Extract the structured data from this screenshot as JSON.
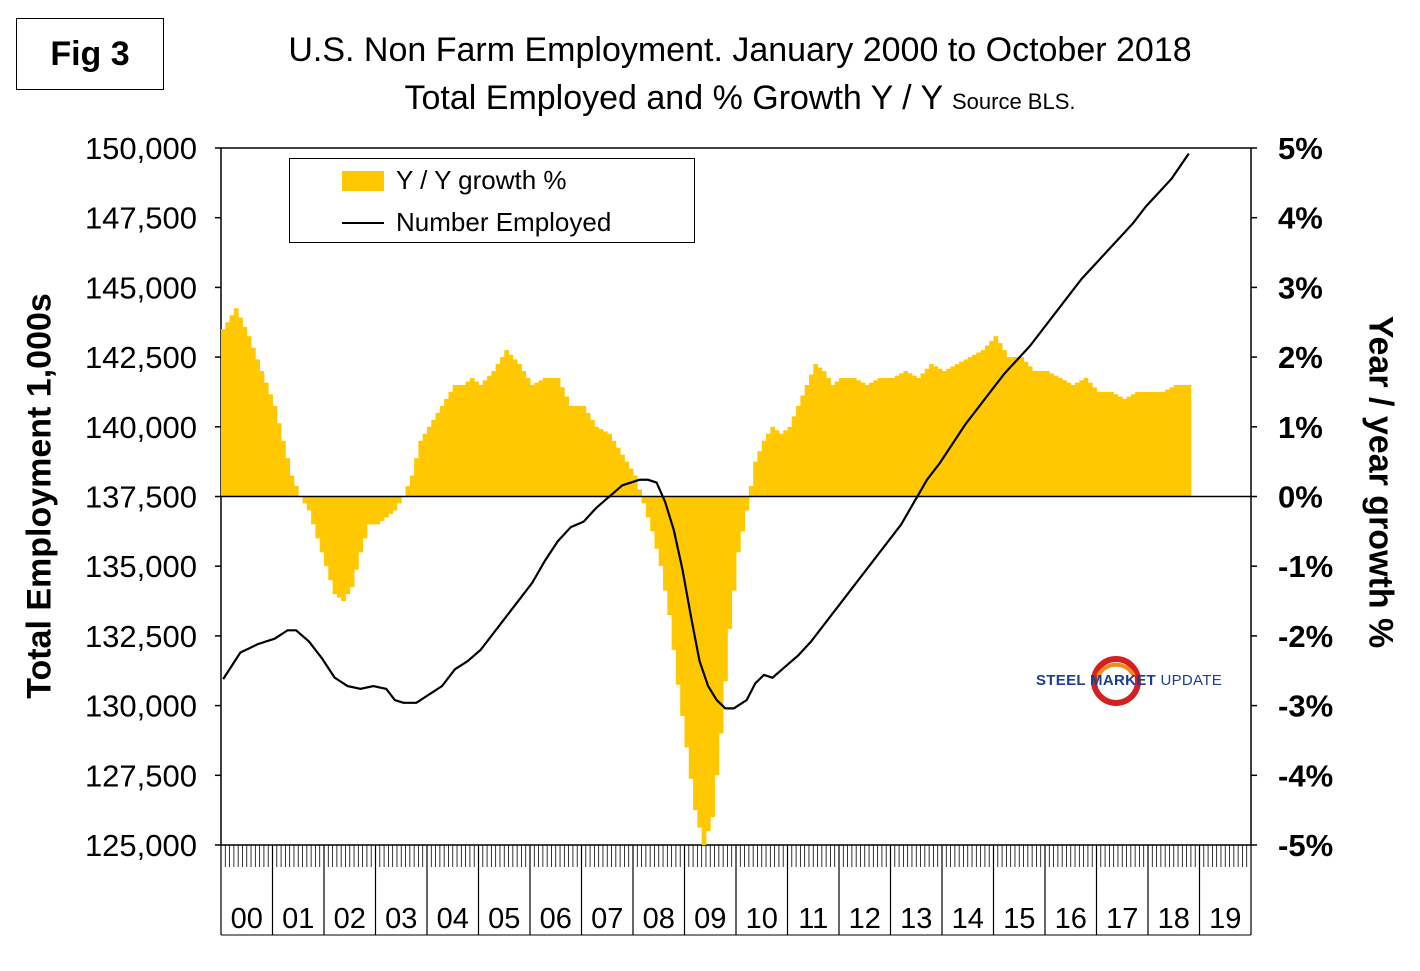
{
  "figure": {
    "label": "Fig 3",
    "title_line1": "U.S. Non Farm Employment. January 2000 to October 2018",
    "title_line2": "Total Employed and % Growth Y / Y",
    "title_source": "Source BLS."
  },
  "logo": {
    "brand": "STEEL MARKET",
    "suffix": "UPDATE"
  },
  "colors": {
    "bar": "#ffc800",
    "line": "#000000",
    "logo_red": "#d42020",
    "logo_orange": "#f08a1c",
    "logo_blue": "#1c3f8a"
  },
  "chart_data": {
    "type": "bar+line",
    "title": "U.S. Non Farm Employment. January 2000 to October 2018",
    "ylabel_left": "Total Employment 1,000s",
    "ylabel_right": "Year / year growth %",
    "y_left_range": [
      125000,
      150000
    ],
    "y_right_range": [
      -5,
      5
    ],
    "y_left_ticks": [
      "150,000",
      "147,500",
      "145,000",
      "142,500",
      "140,000",
      "137,500",
      "135,000",
      "132,500",
      "130,000",
      "127,500",
      "125,000"
    ],
    "y_right_ticks": [
      "5%",
      "4%",
      "3%",
      "2%",
      "1%",
      "0%",
      "-1%",
      "-2%",
      "-3%",
      "-4%",
      "-5%"
    ],
    "x_categories": [
      "00",
      "01",
      "02",
      "03",
      "04",
      "05",
      "06",
      "07",
      "08",
      "09",
      "10",
      "11",
      "12",
      "13",
      "14",
      "15",
      "16",
      "17",
      "18",
      "19"
    ],
    "period": "monthly, Jan 2000 - Oct 2018",
    "legend": [
      "Y / Y growth %",
      "Number Employed"
    ],
    "growth_anchors": {
      "month_index": [
        0,
        3,
        6,
        9,
        12,
        14,
        16,
        18,
        20,
        22,
        24,
        26,
        28,
        30,
        32,
        34,
        36,
        38,
        40,
        42,
        44,
        46,
        48,
        50,
        52,
        54,
        56,
        58,
        60,
        63,
        66,
        69,
        72,
        75,
        78,
        81,
        84,
        87,
        90,
        93,
        96,
        98,
        100,
        102,
        104,
        106,
        108,
        110,
        112,
        114,
        116,
        118,
        120,
        122,
        124,
        126,
        128,
        130,
        132,
        134,
        136,
        138,
        140,
        142,
        144,
        147,
        150,
        153,
        156,
        159,
        162,
        165,
        168,
        171,
        174,
        177,
        180,
        183,
        186,
        189,
        192,
        195,
        198,
        201,
        204,
        207,
        210,
        213,
        216,
        219,
        222,
        225
      ],
      "value_pct": [
        2.4,
        2.7,
        2.3,
        1.8,
        1.3,
        0.8,
        0.3,
        0.0,
        -0.2,
        -0.6,
        -1.0,
        -1.4,
        -1.5,
        -1.3,
        -0.8,
        -0.4,
        -0.4,
        -0.3,
        -0.2,
        0.0,
        0.3,
        0.8,
        1.0,
        1.2,
        1.4,
        1.6,
        1.6,
        1.7,
        1.6,
        1.8,
        2.1,
        1.9,
        1.6,
        1.7,
        1.7,
        1.3,
        1.3,
        1.0,
        0.9,
        0.6,
        0.3,
        -0.1,
        -0.5,
        -1.0,
        -1.7,
        -2.7,
        -3.6,
        -4.5,
        -5.0,
        -4.6,
        -3.4,
        -1.9,
        -0.8,
        -0.2,
        0.5,
        0.8,
        1.0,
        0.9,
        1.0,
        1.3,
        1.6,
        1.9,
        1.8,
        1.6,
        1.7,
        1.7,
        1.6,
        1.7,
        1.7,
        1.8,
        1.7,
        1.9,
        1.8,
        1.9,
        2.0,
        2.1,
        2.3,
        2.0,
        2.0,
        1.8,
        1.8,
        1.7,
        1.6,
        1.7,
        1.5,
        1.5,
        1.4,
        1.5,
        1.5,
        1.5,
        1.6,
        1.6
      ]
    },
    "employment_anchors": {
      "month_index": [
        0,
        4,
        8,
        12,
        15,
        17,
        20,
        23,
        26,
        29,
        32,
        35,
        38,
        40,
        42,
        45,
        48,
        51,
        54,
        57,
        60,
        63,
        66,
        69,
        72,
        75,
        78,
        81,
        84,
        87,
        90,
        93,
        95,
        97,
        99,
        101,
        103,
        105,
        107,
        109,
        111,
        113,
        115,
        117,
        119,
        120,
        122,
        124,
        126,
        128,
        131,
        134,
        137,
        140,
        143,
        146,
        149,
        152,
        155,
        158,
        161,
        164,
        167,
        170,
        173,
        176,
        179,
        182,
        185,
        188,
        191,
        194,
        197,
        200,
        203,
        206,
        209,
        212,
        215,
        218,
        221,
        225
      ],
      "value_thousands": [
        130950,
        131900,
        132200,
        132400,
        132700,
        132700,
        132300,
        131700,
        131000,
        130700,
        130600,
        130700,
        130600,
        130200,
        130100,
        130100,
        130400,
        130700,
        131300,
        131600,
        132000,
        132600,
        133200,
        133800,
        134400,
        135200,
        135900,
        136400,
        136600,
        137100,
        137500,
        137900,
        138000,
        138100,
        138100,
        138000,
        137300,
        136300,
        134900,
        133200,
        131600,
        130700,
        130200,
        129900,
        129900,
        130000,
        130200,
        130800,
        131100,
        131000,
        131400,
        131800,
        132300,
        132900,
        133500,
        134100,
        134700,
        135300,
        135900,
        136500,
        137300,
        138100,
        138700,
        139400,
        140100,
        140700,
        141300,
        141900,
        142400,
        142900,
        143500,
        144100,
        144700,
        145300,
        145800,
        146300,
        146800,
        147300,
        147900,
        148400,
        148900,
        149800
      ]
    }
  }
}
